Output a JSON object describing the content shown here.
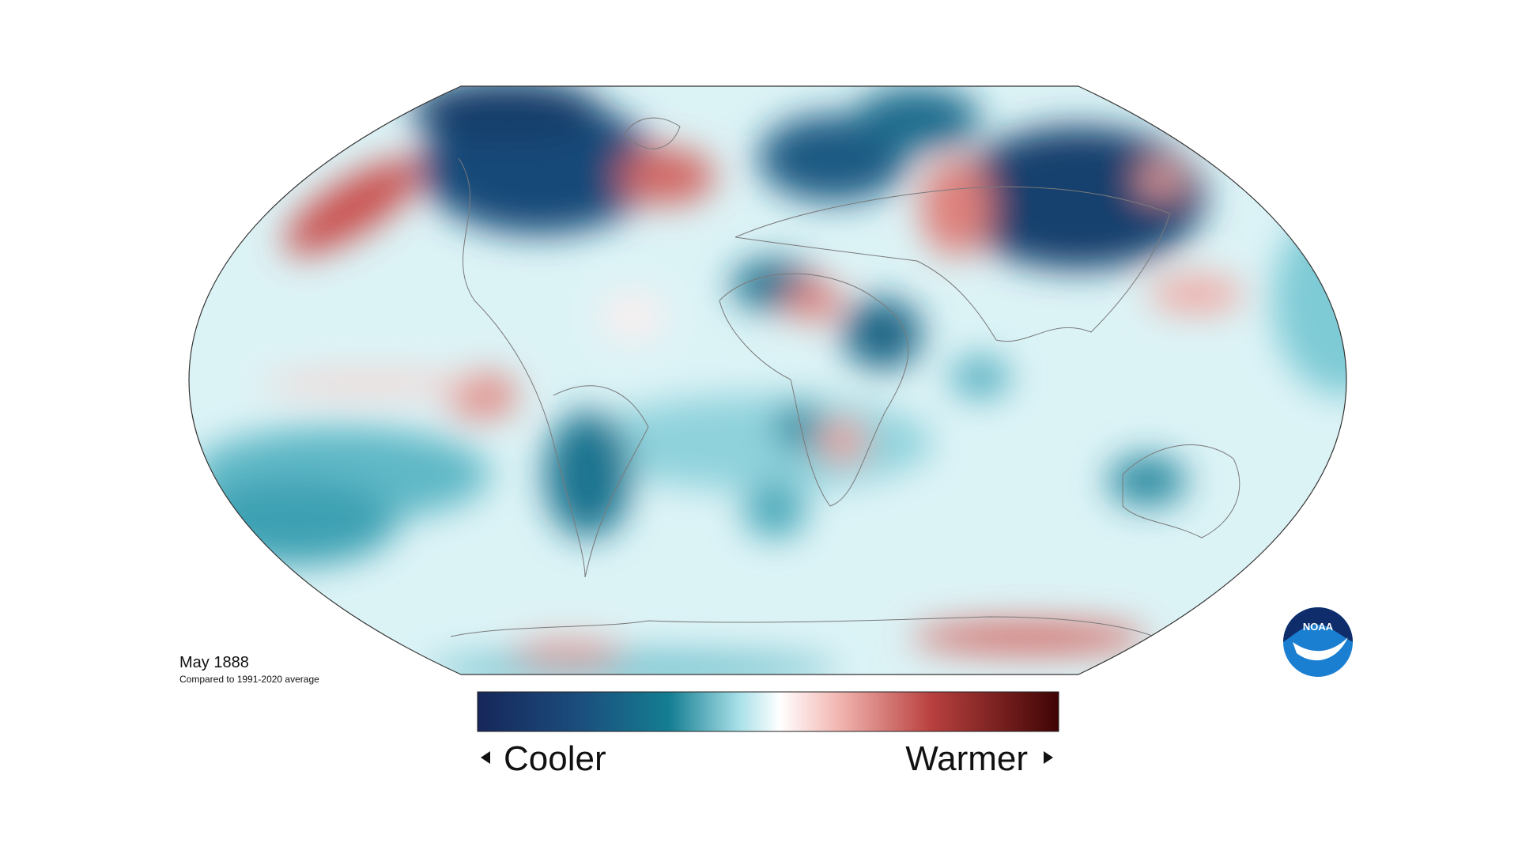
{
  "map": {
    "title": "May 1888",
    "subtitle": "Compared to 1991-2020 average"
  },
  "legend": {
    "low": "Cooler",
    "high": "Warmer"
  },
  "logo": {
    "label": "NOAA"
  }
}
